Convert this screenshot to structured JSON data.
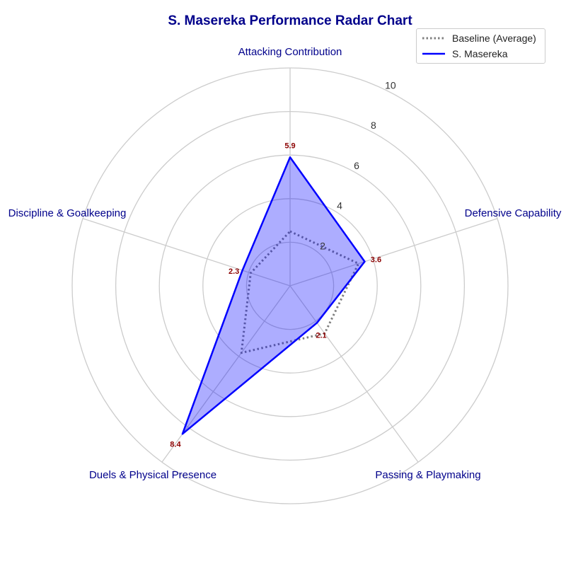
{
  "chart_data": {
    "type": "radar",
    "title": "S. Masereka Performance Radar Chart",
    "axes": [
      "Attacking Contribution",
      "Defensive Capability",
      "Passing & Playmaking",
      "Duels & Physical Presence",
      "Discipline & Goalkeeping"
    ],
    "radial_ticks": [
      "2",
      "4",
      "6",
      "8",
      "10"
    ],
    "rlim": [
      0,
      10
    ],
    "series": [
      {
        "name": "Baseline (Average)",
        "values": [
          2.5,
          3.3,
          2.7,
          3.8,
          1.9
        ],
        "style": "dotted",
        "color": "#808080"
      },
      {
        "name": "S. Masereka",
        "values": [
          5.9,
          3.6,
          2.1,
          8.4,
          2.3
        ],
        "style": "solid",
        "color": "#0000ff",
        "fill": "#0000ff"
      }
    ],
    "data_labels": [
      "5.9",
      "3.6",
      "2.1",
      "8.4",
      "2.3"
    ],
    "data_label_color": "#8b0000",
    "grid": true,
    "legend_position": "top-right"
  }
}
